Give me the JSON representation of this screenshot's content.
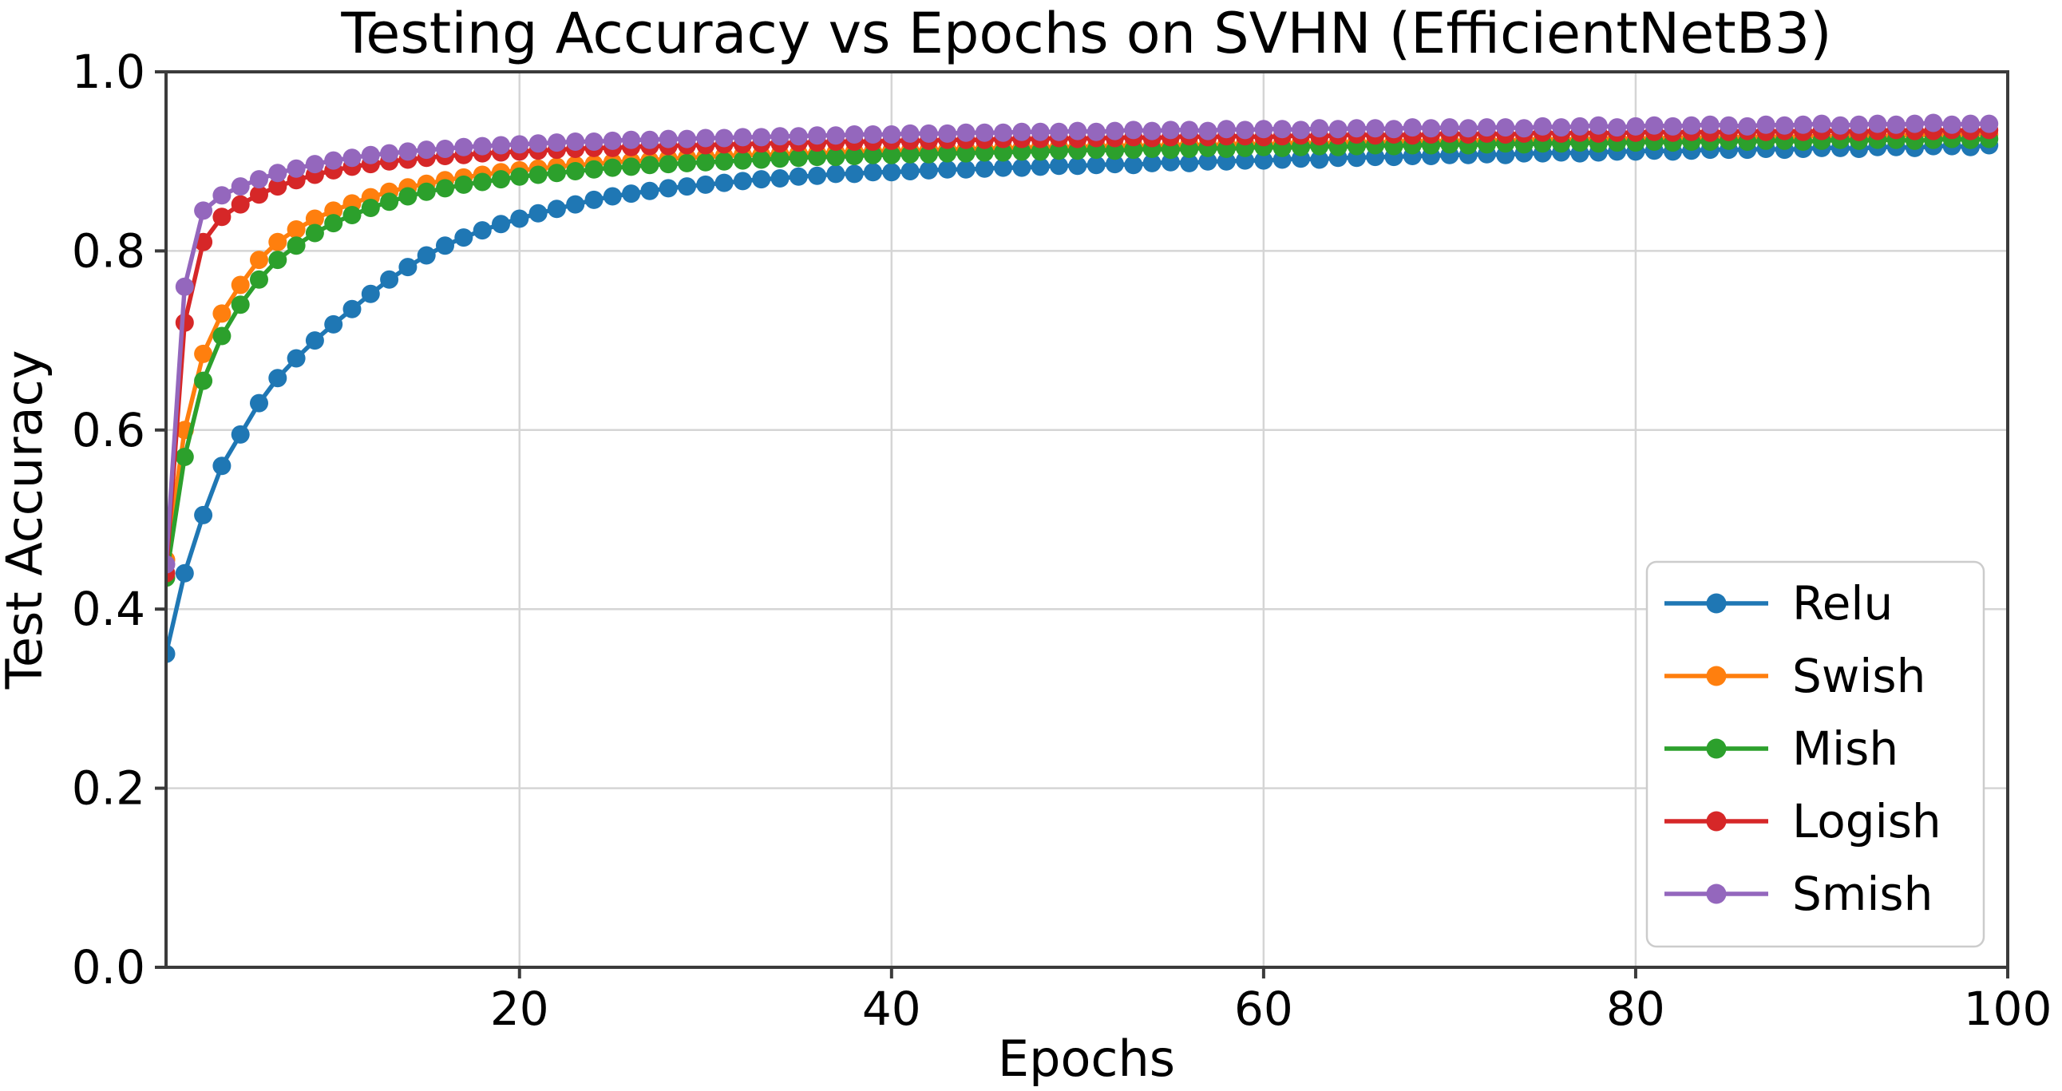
{
  "chart_data": {
    "type": "line",
    "title": "Testing Accuracy vs Epochs on SVHN (EfficientNetB3)",
    "xlabel": "Epochs",
    "ylabel": "Test Accuracy",
    "xlim": [
      1,
      100
    ],
    "ylim": [
      0.0,
      1.0
    ],
    "x_ticks": [
      20,
      40,
      60,
      80,
      100
    ],
    "y_ticks": [
      0.0,
      0.2,
      0.4,
      0.6,
      0.8,
      1.0
    ],
    "y_tick_labels": [
      "0.0",
      "0.2",
      "0.4",
      "0.6",
      "0.8",
      "1.0"
    ],
    "grid": true,
    "grid_color": "#d5d5d5",
    "spine_color": "#3b3b3b",
    "legend_position": "lower right",
    "marker": "circle",
    "epochs_start": 1,
    "series": [
      {
        "name": "Relu",
        "color": "#1f77b4",
        "values": [
          0.35,
          0.44,
          0.505,
          0.56,
          0.595,
          0.63,
          0.658,
          0.68,
          0.7,
          0.718,
          0.735,
          0.752,
          0.768,
          0.782,
          0.795,
          0.806,
          0.815,
          0.823,
          0.83,
          0.836,
          0.842,
          0.847,
          0.852,
          0.857,
          0.861,
          0.864,
          0.867,
          0.87,
          0.872,
          0.874,
          0.876,
          0.878,
          0.88,
          0.881,
          0.883,
          0.884,
          0.886,
          0.886,
          0.888,
          0.888,
          0.889,
          0.89,
          0.891,
          0.891,
          0.892,
          0.893,
          0.893,
          0.894,
          0.895,
          0.895,
          0.896,
          0.897,
          0.896,
          0.898,
          0.899,
          0.898,
          0.9,
          0.9,
          0.901,
          0.901,
          0.902,
          0.903,
          0.902,
          0.904,
          0.904,
          0.905,
          0.905,
          0.906,
          0.906,
          0.907,
          0.907,
          0.908,
          0.907,
          0.909,
          0.909,
          0.91,
          0.909,
          0.91,
          0.911,
          0.911,
          0.912,
          0.911,
          0.912,
          0.913,
          0.913,
          0.913,
          0.914,
          0.913,
          0.914,
          0.915,
          0.915,
          0.914,
          0.916,
          0.916,
          0.915,
          0.917,
          0.917,
          0.916,
          0.918
        ]
      },
      {
        "name": "Swish",
        "color": "#ff7f0e",
        "values": [
          0.455,
          0.6,
          0.685,
          0.73,
          0.762,
          0.79,
          0.81,
          0.824,
          0.836,
          0.845,
          0.853,
          0.86,
          0.866,
          0.871,
          0.875,
          0.879,
          0.882,
          0.885,
          0.888,
          0.89,
          0.892,
          0.894,
          0.896,
          0.897,
          0.899,
          0.9,
          0.901,
          0.903,
          0.904,
          0.905,
          0.906,
          0.907,
          0.907,
          0.908,
          0.909,
          0.909,
          0.91,
          0.911,
          0.911,
          0.912,
          0.912,
          0.913,
          0.913,
          0.914,
          0.914,
          0.915,
          0.915,
          0.916,
          0.916,
          0.916,
          0.917,
          0.917,
          0.918,
          0.917,
          0.918,
          0.919,
          0.918,
          0.919,
          0.92,
          0.919,
          0.92,
          0.921,
          0.92,
          0.921,
          0.922,
          0.921,
          0.922,
          0.923,
          0.922,
          0.923,
          0.923,
          0.924,
          0.923,
          0.924,
          0.925,
          0.924,
          0.925,
          0.925,
          0.926,
          0.925,
          0.926,
          0.926,
          0.927,
          0.926,
          0.927,
          0.927,
          0.928,
          0.927,
          0.928,
          0.928,
          0.928,
          0.929,
          0.928,
          0.929,
          0.929,
          0.93,
          0.929,
          0.93,
          0.93
        ]
      },
      {
        "name": "Mish",
        "color": "#2ca02c",
        "values": [
          0.435,
          0.57,
          0.655,
          0.705,
          0.74,
          0.768,
          0.79,
          0.806,
          0.82,
          0.831,
          0.84,
          0.848,
          0.855,
          0.861,
          0.866,
          0.87,
          0.874,
          0.877,
          0.88,
          0.883,
          0.885,
          0.887,
          0.889,
          0.891,
          0.893,
          0.894,
          0.896,
          0.897,
          0.898,
          0.899,
          0.9,
          0.901,
          0.902,
          0.903,
          0.904,
          0.905,
          0.905,
          0.906,
          0.907,
          0.907,
          0.908,
          0.908,
          0.909,
          0.909,
          0.91,
          0.91,
          0.911,
          0.911,
          0.912,
          0.912,
          0.913,
          0.912,
          0.913,
          0.914,
          0.913,
          0.914,
          0.915,
          0.914,
          0.915,
          0.916,
          0.915,
          0.916,
          0.917,
          0.916,
          0.917,
          0.918,
          0.917,
          0.918,
          0.918,
          0.919,
          0.918,
          0.919,
          0.92,
          0.919,
          0.92,
          0.92,
          0.921,
          0.92,
          0.921,
          0.921,
          0.922,
          0.921,
          0.922,
          0.922,
          0.923,
          0.922,
          0.923,
          0.923,
          0.922,
          0.923,
          0.924,
          0.923,
          0.924,
          0.924,
          0.923,
          0.924,
          0.925,
          0.924,
          0.925
        ]
      },
      {
        "name": "Logish",
        "color": "#d62728",
        "values": [
          0.44,
          0.72,
          0.81,
          0.838,
          0.852,
          0.863,
          0.872,
          0.879,
          0.885,
          0.89,
          0.894,
          0.897,
          0.9,
          0.902,
          0.904,
          0.906,
          0.907,
          0.909,
          0.91,
          0.911,
          0.912,
          0.913,
          0.914,
          0.915,
          0.915,
          0.916,
          0.917,
          0.917,
          0.918,
          0.918,
          0.919,
          0.919,
          0.92,
          0.92,
          0.921,
          0.921,
          0.922,
          0.922,
          0.922,
          0.923,
          0.923,
          0.923,
          0.924,
          0.924,
          0.924,
          0.925,
          0.925,
          0.925,
          0.926,
          0.925,
          0.926,
          0.926,
          0.927,
          0.926,
          0.927,
          0.928,
          0.927,
          0.928,
          0.928,
          0.927,
          0.928,
          0.929,
          0.928,
          0.929,
          0.93,
          0.929,
          0.93,
          0.929,
          0.93,
          0.931,
          0.93,
          0.931,
          0.93,
          0.931,
          0.932,
          0.931,
          0.932,
          0.931,
          0.932,
          0.932,
          0.933,
          0.932,
          0.933,
          0.932,
          0.933,
          0.934,
          0.933,
          0.934,
          0.933,
          0.934,
          0.934,
          0.933,
          0.934,
          0.935,
          0.934,
          0.934,
          0.935,
          0.934,
          0.935
        ]
      },
      {
        "name": "Smish",
        "color": "#9467bd",
        "values": [
          0.45,
          0.76,
          0.845,
          0.862,
          0.872,
          0.88,
          0.887,
          0.892,
          0.897,
          0.901,
          0.904,
          0.907,
          0.909,
          0.911,
          0.913,
          0.914,
          0.916,
          0.917,
          0.918,
          0.919,
          0.92,
          0.921,
          0.922,
          0.922,
          0.923,
          0.924,
          0.924,
          0.925,
          0.925,
          0.926,
          0.926,
          0.927,
          0.927,
          0.928,
          0.928,
          0.929,
          0.929,
          0.93,
          0.93,
          0.93,
          0.931,
          0.931,
          0.931,
          0.932,
          0.932,
          0.932,
          0.933,
          0.933,
          0.933,
          0.934,
          0.933,
          0.934,
          0.935,
          0.934,
          0.935,
          0.935,
          0.934,
          0.936,
          0.935,
          0.936,
          0.936,
          0.935,
          0.937,
          0.936,
          0.937,
          0.937,
          0.936,
          0.938,
          0.937,
          0.938,
          0.937,
          0.938,
          0.938,
          0.937,
          0.939,
          0.938,
          0.939,
          0.94,
          0.938,
          0.939,
          0.94,
          0.939,
          0.94,
          0.941,
          0.94,
          0.939,
          0.941,
          0.94,
          0.941,
          0.942,
          0.94,
          0.941,
          0.942,
          0.941,
          0.942,
          0.943,
          0.941,
          0.942,
          0.942
        ]
      }
    ],
    "legend_labels": [
      "Relu",
      "Swish",
      "Mish",
      "Logish",
      "Smish"
    ]
  }
}
